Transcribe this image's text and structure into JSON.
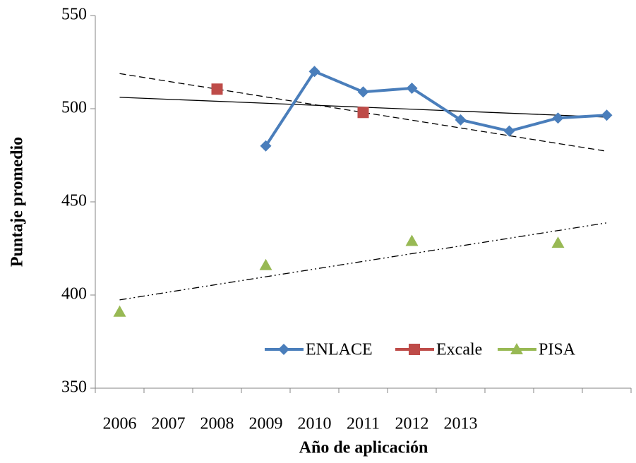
{
  "chart_data": {
    "type": "line",
    "x_label": "Año de aplicación",
    "y_label": "Puntaje promedio",
    "categories": [
      "2006",
      "2007",
      "2008",
      "2009",
      "2010",
      "2011",
      "2012",
      "2013",
      null,
      null,
      null
    ],
    "series": [
      {
        "name": "ENLACE",
        "color": "#4a7ebb",
        "marker": "diamond",
        "trendline": "solid",
        "values": [
          null,
          null,
          null,
          480,
          520,
          509,
          511,
          494,
          488,
          495,
          496.5
        ]
      },
      {
        "name": "Excale",
        "color": "#be4b48",
        "marker": "square",
        "trendline": "dashed",
        "values": [
          null,
          null,
          510.5,
          null,
          null,
          498,
          null,
          null,
          null,
          null,
          null
        ]
      },
      {
        "name": "PISA",
        "color": "#98b954",
        "marker": "triangle",
        "trendline": "dashdot",
        "values": [
          391,
          null,
          null,
          416,
          null,
          null,
          429,
          null,
          null,
          428,
          null
        ]
      }
    ],
    "ylim": [
      350,
      550
    ],
    "yticks": [
      350,
      400,
      450,
      500,
      550
    ],
    "legend": "bottom",
    "grid": false
  }
}
